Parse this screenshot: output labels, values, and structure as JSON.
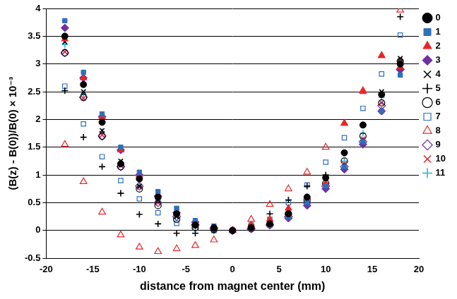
{
  "chart_data": {
    "type": "scatter",
    "x_label": "distance from magnet center (mm)",
    "y_label": "(B(z) - B(0))/B(0) × 10⁻³",
    "x": [
      -18,
      -16,
      -14,
      -12,
      -10,
      -8,
      -6,
      -4,
      -2,
      0,
      2,
      4,
      6,
      8,
      10,
      12,
      14,
      16,
      18
    ],
    "xlim": [
      -20,
      20
    ],
    "xticks": [
      -20,
      -15,
      -10,
      -5,
      0,
      5,
      10,
      15,
      20
    ],
    "ylim": [
      -0.5,
      4
    ],
    "yticks": [
      -0.5,
      0,
      0.5,
      1,
      1.5,
      2,
      2.5,
      3,
      3.5,
      4
    ],
    "grid": "y",
    "legend": "right",
    "series": [
      {
        "name": "0",
        "color": "#000000",
        "marker": "circle",
        "values": [
          3.5,
          2.63,
          1.95,
          1.2,
          0.93,
          0.6,
          0.3,
          0.1,
          0.05,
          0,
          0.05,
          0.12,
          0.3,
          0.6,
          0.95,
          1.4,
          1.9,
          2.45,
          3.0
        ]
      },
      {
        "name": "1",
        "color": "#2e6fba",
        "marker": "square",
        "values": [
          3.78,
          2.85,
          2.1,
          1.5,
          1.05,
          0.7,
          0.4,
          0.18,
          0.08,
          0,
          0.05,
          0.1,
          0.25,
          0.5,
          0.8,
          1.15,
          1.6,
          2.15,
          2.8
        ]
      },
      {
        "name": "2",
        "color": "#e8262a",
        "marker": "triangle",
        "values": [
          3.45,
          2.75,
          2.05,
          1.45,
          1.0,
          0.65,
          0.35,
          0.15,
          0.05,
          0,
          0.1,
          0.2,
          0.4,
          0.6,
          0.85,
          1.93,
          2.5,
          3.15,
          2.95
        ]
      },
      {
        "name": "3",
        "color": "#7030a0",
        "marker": "diamond",
        "values": [
          3.65,
          2.75,
          2.05,
          1.45,
          1.0,
          0.62,
          0.32,
          0.15,
          0.05,
          0,
          0.03,
          0.1,
          0.22,
          0.45,
          0.75,
          1.1,
          1.55,
          2.15,
          2.9
        ]
      },
      {
        "name": "4",
        "color": "#000000",
        "marker": "x",
        "values": [
          3.4,
          2.5,
          1.8,
          1.25,
          0.8,
          0.55,
          0.25,
          0.1,
          0.03,
          0,
          0.05,
          0.15,
          0.35,
          0.6,
          0.95,
          1.4,
          1.9,
          2.5,
          3.1
        ]
      },
      {
        "name": "5",
        "color": "#000000",
        "marker": "plus",
        "values": [
          2.52,
          1.68,
          1.15,
          0.67,
          0.29,
          0.12,
          -0.05,
          -0.05,
          0.0,
          0,
          0.1,
          0.3,
          0.55,
          0.8,
          1.0,
          1.4,
          1.9,
          2.45,
          3.85
        ]
      },
      {
        "name": "6",
        "color": "#000000",
        "marker": "open_circle",
        "values": [
          3.2,
          2.4,
          1.7,
          1.15,
          0.75,
          0.45,
          0.2,
          0.05,
          0.02,
          0,
          0.03,
          0.1,
          0.3,
          0.55,
          0.85,
          1.25,
          1.7,
          2.3,
          3.05
        ]
      },
      {
        "name": "7",
        "color": "#2e6fba",
        "marker": "open_square",
        "values": [
          2.6,
          1.92,
          1.33,
          0.9,
          0.57,
          0.32,
          0.13,
          0.05,
          0.0,
          0,
          0.1,
          0.2,
          0.5,
          0.82,
          1.23,
          1.67,
          2.2,
          2.82,
          3.52
        ]
      },
      {
        "name": "8",
        "color": "#e8262a",
        "marker": "open_triangle",
        "values": [
          1.55,
          0.88,
          0.33,
          -0.08,
          -0.3,
          -0.38,
          -0.33,
          -0.27,
          -0.17,
          0,
          0.2,
          0.47,
          0.75,
          1.05,
          1.5,
          1.93,
          2.52,
          3.15,
          3.97
        ]
      },
      {
        "name": "9",
        "color": "#7030a0",
        "marker": "open_diamond",
        "values": [
          3.2,
          2.4,
          1.7,
          1.15,
          0.8,
          0.5,
          0.25,
          0.1,
          0.03,
          0,
          0.03,
          0.1,
          0.25,
          0.5,
          0.8,
          1.15,
          1.6,
          2.25,
          2.9
        ]
      },
      {
        "name": "10",
        "color": "#e8262a",
        "marker": "x",
        "values": [
          3.22,
          2.38,
          1.72,
          1.17,
          0.78,
          0.5,
          0.25,
          0.1,
          0.03,
          0,
          0.03,
          0.12,
          0.28,
          0.5,
          0.8,
          1.2,
          1.65,
          2.3,
          3.05
        ]
      },
      {
        "name": "11",
        "color": "#2fb5d4",
        "marker": "plus",
        "values": [
          3.35,
          2.45,
          1.78,
          1.23,
          0.82,
          0.55,
          0.3,
          0.12,
          0.04,
          0,
          0.05,
          0.12,
          0.3,
          0.52,
          0.85,
          1.25,
          1.75,
          2.4,
          3.05
        ]
      }
    ]
  }
}
